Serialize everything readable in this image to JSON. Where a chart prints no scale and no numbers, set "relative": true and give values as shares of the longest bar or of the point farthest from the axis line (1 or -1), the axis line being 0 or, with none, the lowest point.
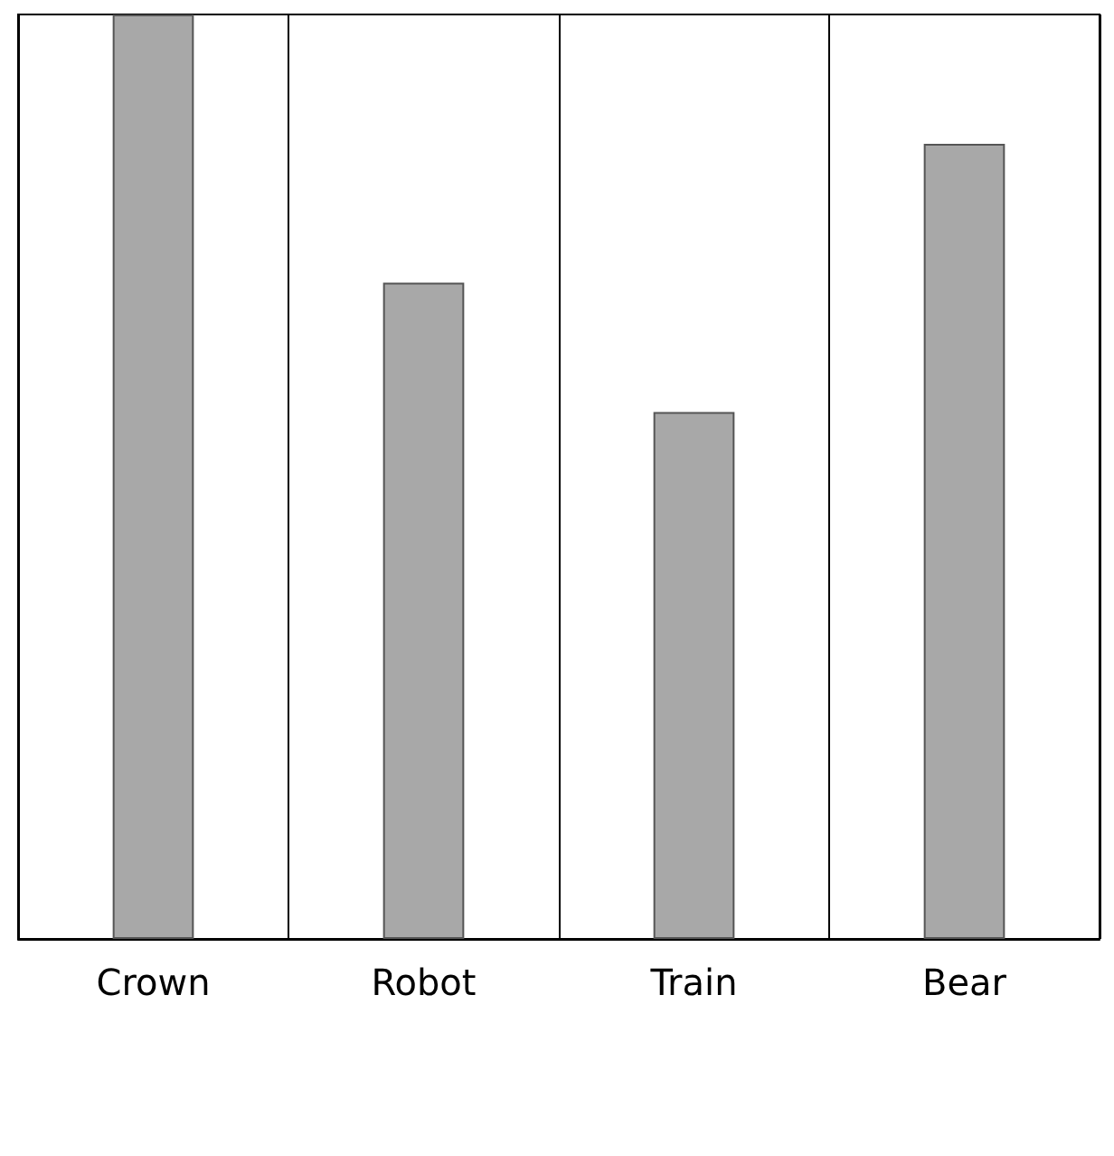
{
  "chart_data": {
    "type": "bar",
    "relative": true,
    "categories": [
      "Crown",
      "Robot",
      "Train",
      "Bear"
    ],
    "values": [
      1,
      0.71,
      0.57,
      0.86
    ],
    "color": "#a8a8a8",
    "grid": "x"
  }
}
